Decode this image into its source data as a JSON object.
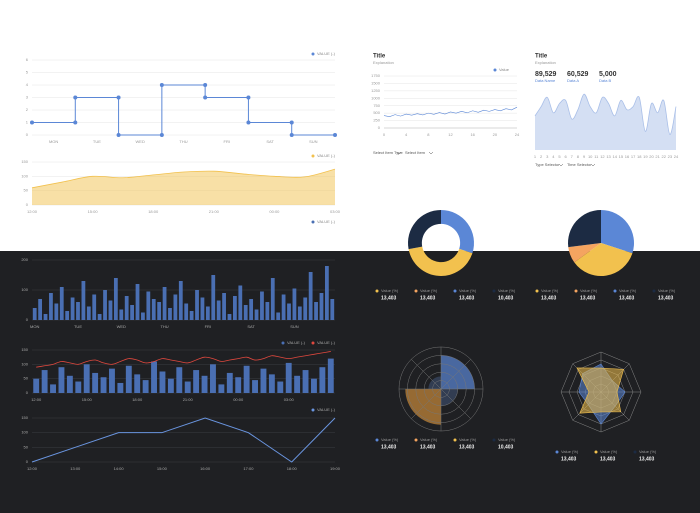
{
  "chart_data": [
    {
      "type": "step",
      "categories": [
        "MON",
        "TUE",
        "WED",
        "THU",
        "FRI",
        "SAT",
        "SUN"
      ],
      "series": [
        {
          "name": "VALUE (-)",
          "color": "#5b87d6",
          "values": [
            1,
            3,
            0,
            4,
            3,
            1,
            0
          ]
        }
      ],
      "ylim": [
        0,
        6
      ],
      "yticks": [
        0,
        1,
        2,
        3,
        4,
        5,
        6
      ],
      "grid": true
    },
    {
      "type": "area",
      "categories": [
        "12:00",
        null,
        "15:00",
        null,
        "18:00",
        null,
        "21:00",
        null,
        "00:00",
        null,
        "03:00"
      ],
      "series": [
        {
          "name": "VALUE (-)",
          "color": "#f2c14e",
          "values": [
            60,
            80,
            100,
            95,
            105,
            115,
            118,
            108,
            100,
            98,
            125
          ]
        }
      ],
      "ylim": [
        0,
        150
      ],
      "yticks": [
        0,
        50,
        100,
        150
      ],
      "grid": true
    },
    {
      "type": "line",
      "title": "Title",
      "subtitle": "Explanation",
      "x": [
        0,
        1,
        2,
        3,
        4,
        5,
        6,
        7,
        8,
        9,
        10,
        11,
        12,
        13,
        14,
        15,
        16,
        17,
        18,
        19,
        20,
        21,
        22,
        23,
        24
      ],
      "series": [
        {
          "name": "Value",
          "color": "#5b87d6",
          "values": [
            420,
            380,
            450,
            400,
            470,
            430,
            480,
            440,
            500,
            460,
            520,
            470,
            540,
            500,
            560,
            510,
            580,
            530,
            600,
            560,
            620,
            580,
            650,
            610,
            700
          ]
        }
      ],
      "xlim": [
        0,
        24
      ],
      "xticks": [
        0,
        4,
        8,
        12,
        16,
        20,
        24
      ],
      "ylim": [
        0,
        1750
      ],
      "yticks": [
        0,
        250,
        500,
        750,
        1000,
        1250,
        1500,
        1750
      ],
      "grid": true,
      "controls": [
        "Select Item Type",
        "Select Item"
      ]
    },
    {
      "type": "area",
      "title": "Title",
      "subtitle": "Explanation",
      "stats": [
        {
          "figure": "89,529",
          "label": "Data Name"
        },
        {
          "figure": "60,529",
          "label": "Data A"
        },
        {
          "figure": "5,000",
          "label": "Data B"
        }
      ],
      "categories": [
        "1",
        "2",
        "3",
        "4",
        "5",
        "6",
        "7",
        "8",
        "9",
        "10",
        "11",
        "12",
        "13",
        "14",
        "15",
        "16",
        "17",
        "18",
        "19",
        "20",
        "21",
        "22",
        "23",
        "24"
      ],
      "series": [
        {
          "color": "#a9bfe8",
          "values": [
            55,
            70,
            85,
            60,
            75,
            80,
            50,
            65,
            90,
            70,
            60,
            85,
            75,
            55,
            80,
            65,
            70,
            85,
            30,
            75,
            60,
            80,
            25,
            70
          ]
        }
      ],
      "ylim": [
        0,
        100
      ],
      "controls": [
        "Type Selector",
        "Time Selector"
      ]
    },
    {
      "type": "bar",
      "categories": [
        "MON",
        null,
        null,
        null,
        null,
        null,
        null,
        null,
        "TUE",
        null,
        null,
        null,
        null,
        null,
        null,
        null,
        "WED",
        null,
        null,
        null,
        null,
        null,
        null,
        null,
        "THU",
        null,
        null,
        null,
        null,
        null,
        null,
        null,
        "FRI",
        null,
        null,
        null,
        null,
        null,
        null,
        null,
        "SAT",
        null,
        null,
        null,
        null,
        null,
        null,
        null,
        "SUN",
        null,
        null,
        null,
        null,
        null,
        null,
        null
      ],
      "series": [
        {
          "name": "VALUE (-)",
          "color": "#4a6fb3",
          "values": [
            40,
            70,
            20,
            90,
            55,
            110,
            30,
            75,
            60,
            130,
            45,
            85,
            20,
            100,
            65,
            140,
            35,
            80,
            50,
            120,
            25,
            95,
            70,
            60,
            110,
            40,
            85,
            130,
            55,
            30,
            100,
            75,
            45,
            150,
            65,
            90,
            20,
            80,
            115,
            50,
            70,
            35,
            95,
            60,
            140,
            25,
            85,
            55,
            105,
            45,
            75,
            160,
            60,
            90,
            180,
            70
          ]
        }
      ],
      "ylim": [
        0,
        200
      ],
      "yticks": [
        0,
        100,
        200
      ],
      "grid": true
    },
    {
      "type": "bar",
      "categories": [
        "12:00",
        null,
        null,
        null,
        null,
        null,
        "15:00",
        null,
        null,
        null,
        null,
        null,
        "18:00",
        null,
        null,
        null,
        null,
        null,
        "21:00",
        null,
        null,
        null,
        null,
        null,
        "00:00",
        null,
        null,
        null,
        null,
        null,
        "03:00",
        null,
        null,
        null,
        null,
        null
      ],
      "series": [
        {
          "name": "VALUE (-)",
          "color": "#4a6fb3",
          "mark": "bar",
          "values": [
            50,
            80,
            30,
            90,
            60,
            40,
            100,
            70,
            55,
            85,
            35,
            95,
            65,
            45,
            110,
            75,
            50,
            90,
            40,
            80,
            60,
            100,
            30,
            70,
            55,
            95,
            45,
            85,
            65,
            40,
            105,
            60,
            80,
            50,
            90,
            120
          ]
        },
        {
          "name": "VALUE (-)",
          "color": "#e0483e",
          "mark": "line",
          "values": [
            90,
            95,
            100,
            110,
            105,
            100,
            110,
            115,
            105,
            100,
            110,
            120,
            115,
            105,
            110,
            120,
            115,
            110,
            105,
            115,
            125,
            120,
            110,
            115,
            120,
            125,
            115,
            120,
            130,
            125,
            120,
            125,
            130,
            135,
            140,
            145
          ]
        }
      ],
      "ylim": [
        0,
        150
      ],
      "yticks": [
        0,
        50,
        100,
        150
      ],
      "grid": true
    },
    {
      "type": "line",
      "categories": [
        "12:00",
        "13:00",
        "14:00",
        "15:00",
        "16:00",
        "17:00",
        "18:00",
        "19:00"
      ],
      "series": [
        {
          "name": "VALUE (-)",
          "color": "#6a95e0",
          "values": [
            0,
            50,
            100,
            100,
            150,
            100,
            0,
            150
          ]
        }
      ],
      "ylim": [
        0,
        150
      ],
      "yticks": [
        0,
        50,
        100,
        150
      ],
      "grid": true
    },
    {
      "type": "donut",
      "values": [
        30,
        42,
        28
      ],
      "colors": [
        "#5b87d6",
        "#f2c14e",
        "#1c2b43"
      ],
      "legend": [
        {
          "name": "Value (%)",
          "figure": "13,403",
          "color": "#f2c14e"
        },
        {
          "name": "Value (%)",
          "figure": "13,403",
          "color": "#f4a460"
        },
        {
          "name": "Value (%)",
          "figure": "13,403",
          "color": "#5b87d6"
        },
        {
          "name": "Value (%)",
          "figure": "10,403",
          "color": "#1c2b43"
        }
      ]
    },
    {
      "type": "pie",
      "values": [
        30,
        35,
        8,
        27
      ],
      "colors": [
        "#5b87d6",
        "#f2c14e",
        "#f4a460",
        "#1c2b43"
      ],
      "legend": [
        {
          "name": "Value (%)",
          "figure": "13,403",
          "color": "#f2c14e"
        },
        {
          "name": "Value (%)",
          "figure": "13,403",
          "color": "#f4a460"
        },
        {
          "name": "Value (%)",
          "figure": "13,403",
          "color": "#5b87d6"
        },
        {
          "name": "Value (%)",
          "figure": "13,403",
          "color": "#1c2b43"
        }
      ]
    },
    {
      "type": "polar",
      "values": [
        80,
        40,
        85,
        30
      ],
      "colors": [
        "#5b87d6",
        "#3b4a66",
        "#c98a3a",
        "#3b4a66"
      ],
      "rlim": [
        0,
        100
      ],
      "rticks": [
        20,
        40,
        60,
        80,
        100
      ],
      "legend": [
        {
          "name": "Value (%)",
          "figure": "13,403",
          "color": "#5b87d6"
        },
        {
          "name": "Value (%)",
          "figure": "13,403",
          "color": "#f4a460"
        },
        {
          "name": "Value (%)",
          "figure": "13,403",
          "color": "#f2c14e"
        },
        {
          "name": "Value (%)",
          "figure": "10,403",
          "color": "#1c2b43"
        }
      ]
    },
    {
      "type": "radar",
      "series": [
        {
          "color": "#5b87d6",
          "values": [
            70,
            40,
            60,
            50,
            80,
            45,
            55,
            65
          ]
        },
        {
          "color": "#f2c14e",
          "values": [
            60,
            80,
            40,
            70,
            50,
            75,
            30,
            85
          ]
        }
      ],
      "rlim": [
        0,
        100
      ],
      "rticks": [
        20,
        40,
        60,
        80,
        100
      ],
      "legend": [
        {
          "name": "Value (%)",
          "figure": "13,403",
          "color": "#5b87d6"
        },
        {
          "name": "Value (%)",
          "figure": "13,403",
          "color": "#f2c14e"
        },
        {
          "name": "Value (%)",
          "figure": "13,403",
          "color": "#1c2b43"
        }
      ]
    }
  ]
}
